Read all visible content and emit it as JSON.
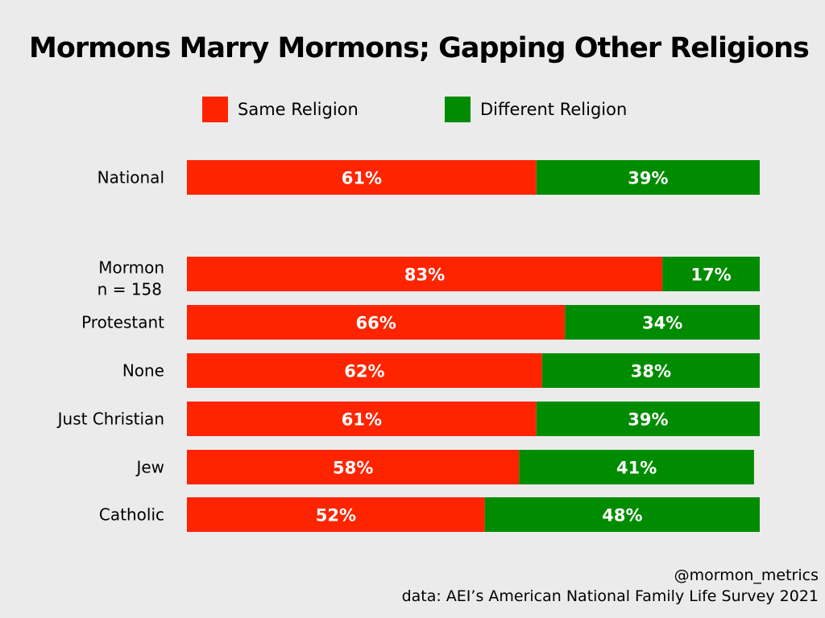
{
  "chart_data": {
    "type": "bar",
    "stacked": true,
    "orientation": "horizontal",
    "title": "Mormons Marry Mormons; Gapping Other Religions",
    "categories": [
      "National",
      "Mormon\nn = 158",
      "Protestant",
      "None",
      "Just Christian",
      "Jew",
      "Catholic"
    ],
    "series": [
      {
        "name": "Same Religion",
        "color": "#ff2400",
        "values": [
          61,
          83,
          66,
          62,
          61,
          58,
          52
        ],
        "labels": [
          "61%",
          "83%",
          "66%",
          "62%",
          "61%",
          "58%",
          "52%"
        ]
      },
      {
        "name": "Different Religion",
        "color": "#008c00",
        "values": [
          39,
          17,
          34,
          38,
          39,
          41,
          48
        ],
        "labels": [
          "39%",
          "17%",
          "34%",
          "38%",
          "39%",
          "41%",
          "48%"
        ]
      }
    ],
    "xlim": [
      0,
      100
    ],
    "legend_position": "top",
    "grid": false
  },
  "footer": {
    "handle": "@mormon_metrics",
    "source": "data: AEI’s American National Family Life Survey 2021"
  }
}
